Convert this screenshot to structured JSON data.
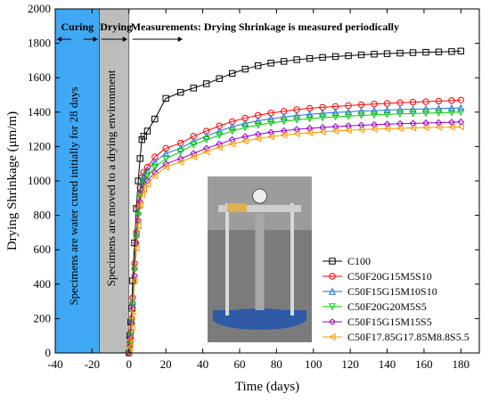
{
  "chart_data": {
    "type": "line",
    "xlabel": "Time (days)",
    "ylabel": "Drying Shrinkage (μm/m)",
    "xlim": [
      -40,
      190
    ],
    "ylim": [
      0,
      2000
    ],
    "x_ticks": [
      -40,
      -20,
      0,
      20,
      40,
      60,
      80,
      100,
      120,
      140,
      160,
      180
    ],
    "y_ticks": [
      0,
      200,
      400,
      600,
      800,
      1000,
      1200,
      1400,
      1600,
      1800,
      2000
    ],
    "grid": false,
    "legend_position": "bottom-right",
    "annotations": {
      "curing_label": "Curing",
      "drying_label": "Drying",
      "measurements_label": "Measurements: Drying Shrinkage is measured periodically",
      "curing_band_text": "Specimens are water cured initially for 28 days",
      "drying_band_text": "Specimens are moved to a drying environment"
    },
    "bands": [
      {
        "from": -40,
        "to": -16,
        "color": "#3fa9f5"
      },
      {
        "from": -16,
        "to": 0,
        "color": "#bdbdbd"
      }
    ],
    "x": [
      0,
      0.5,
      1,
      1.5,
      2,
      3,
      4,
      5,
      6,
      7,
      8,
      10,
      14,
      20,
      28,
      35,
      42,
      49,
      56,
      63,
      70,
      77,
      84,
      91,
      98,
      105,
      112,
      119,
      126,
      133,
      140,
      147,
      154,
      161,
      168,
      175,
      180
    ],
    "series": [
      {
        "name": "C100",
        "color": "#000000",
        "marker": "square",
        "values": [
          0,
          100,
          180,
          260,
          420,
          640,
          840,
          1000,
          1130,
          1240,
          1260,
          1290,
          1360,
          1480,
          1515,
          1540,
          1565,
          1595,
          1625,
          1650,
          1670,
          1685,
          1695,
          1705,
          1712,
          1718,
          1723,
          1728,
          1733,
          1737,
          1740,
          1743,
          1746,
          1748,
          1750,
          1752,
          1755
        ]
      },
      {
        "name": "C50F20G15M5S10",
        "color": "#ff0000",
        "marker": "circle",
        "values": [
          0,
          60,
          120,
          200,
          320,
          520,
          700,
          850,
          960,
          1020,
          1050,
          1080,
          1140,
          1190,
          1220,
          1260,
          1290,
          1320,
          1345,
          1365,
          1382,
          1395,
          1405,
          1415,
          1422,
          1428,
          1433,
          1438,
          1443,
          1447,
          1451,
          1455,
          1458,
          1461,
          1464,
          1467,
          1470
        ]
      },
      {
        "name": "C50F15G15M10S10",
        "color": "#1f6fd6",
        "marker": "triangle-up",
        "values": [
          0,
          50,
          110,
          190,
          300,
          500,
          690,
          820,
          940,
          1000,
          1030,
          1060,
          1110,
          1160,
          1190,
          1230,
          1260,
          1290,
          1315,
          1335,
          1350,
          1362,
          1372,
          1380,
          1387,
          1393,
          1398,
          1402,
          1406,
          1409,
          1412,
          1415,
          1417,
          1419,
          1421,
          1423,
          1425
        ]
      },
      {
        "name": "C50F20G20M5S5",
        "color": "#00cc00",
        "marker": "triangle-down",
        "values": [
          0,
          45,
          100,
          180,
          280,
          480,
          670,
          800,
          910,
          970,
          1000,
          1030,
          1080,
          1130,
          1170,
          1210,
          1240,
          1265,
          1290,
          1310,
          1325,
          1337,
          1347,
          1355,
          1362,
          1368,
          1373,
          1377,
          1381,
          1384,
          1387,
          1390,
          1392,
          1394,
          1396,
          1398,
          1400
        ]
      },
      {
        "name": "C50F15G15M15S5",
        "color": "#9900cc",
        "marker": "diamond",
        "values": [
          0,
          40,
          90,
          170,
          260,
          450,
          640,
          770,
          880,
          940,
          970,
          1000,
          1050,
          1100,
          1130,
          1160,
          1190,
          1215,
          1240,
          1258,
          1272,
          1283,
          1292,
          1300,
          1306,
          1311,
          1316,
          1320,
          1324,
          1327,
          1330,
          1333,
          1335,
          1337,
          1339,
          1341,
          1343
        ]
      },
      {
        "name": "C50F17.85G17.85M8.8S5.5",
        "color": "#ff9900",
        "marker": "triangle-left",
        "values": [
          0,
          35,
          80,
          150,
          240,
          420,
          610,
          740,
          860,
          920,
          950,
          980,
          1030,
          1080,
          1110,
          1140,
          1170,
          1195,
          1215,
          1232,
          1246,
          1257,
          1266,
          1274,
          1280,
          1285,
          1290,
          1294,
          1298,
          1301,
          1304,
          1306,
          1308,
          1310,
          1312,
          1313,
          1315
        ]
      }
    ]
  }
}
